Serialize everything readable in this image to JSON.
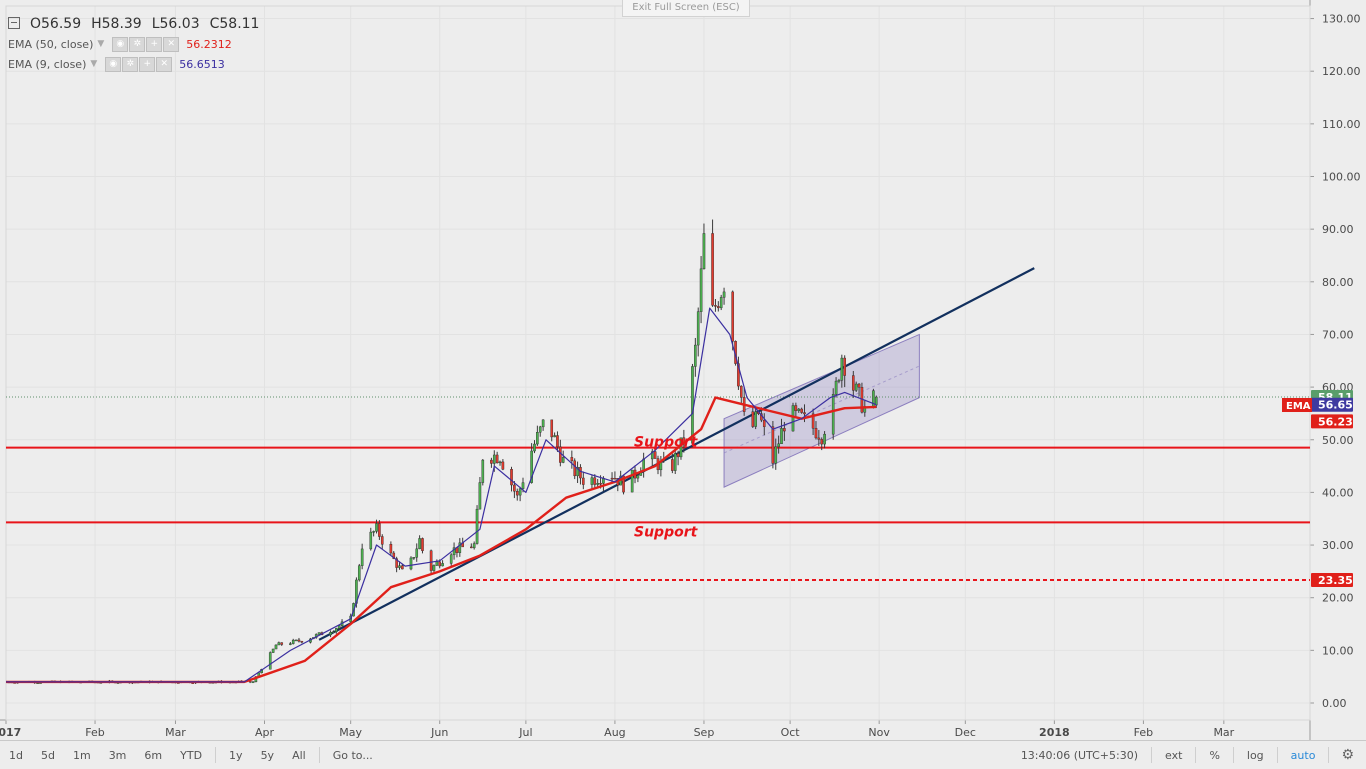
{
  "toolbar": {
    "exit_fullscreen": "Exit Full Screen (ESC)"
  },
  "legend": {
    "open": "O56.59",
    "high": "H58.39",
    "low": "L56.03",
    "close": "C58.11",
    "ema50": {
      "name": "EMA (50, close)",
      "value": "56.2312",
      "color": "#e0201a"
    },
    "ema9": {
      "name": "EMA (9, close)",
      "value": "56.6513",
      "color": "#3b2fa0"
    }
  },
  "price_axis": {
    "ticks": [
      "130.00",
      "120.00",
      "110.00",
      "100.00",
      "90.00",
      "80.00",
      "70.00",
      "60.00",
      "50.00",
      "40.00",
      "30.00",
      "20.00",
      "10.00",
      "0.00"
    ],
    "last_price": "58.11",
    "ema_label": "EMA",
    "ema9_value": "56.65",
    "ema50_value": "56.23",
    "level_label": "23.35"
  },
  "time_axis": {
    "labels": [
      {
        "t": "2017",
        "bold": true
      },
      {
        "t": "Feb"
      },
      {
        "t": "Mar"
      },
      {
        "t": "Apr"
      },
      {
        "t": "May"
      },
      {
        "t": "Jun"
      },
      {
        "t": "Jul"
      },
      {
        "t": "Aug"
      },
      {
        "t": "Sep"
      },
      {
        "t": "Oct"
      },
      {
        "t": "Nov"
      },
      {
        "t": "Dec"
      },
      {
        "t": "2018",
        "bold": true
      },
      {
        "t": "Feb"
      },
      {
        "t": "Mar"
      }
    ]
  },
  "annotations": {
    "support_upper": "Support",
    "support_lower": "Support"
  },
  "bottom_bar": {
    "timeframes": [
      "1d",
      "5d",
      "1m",
      "3m",
      "6m",
      "YTD",
      "1y",
      "5y",
      "All"
    ],
    "goto": "Go to...",
    "clock": "13:40:06 (UTC+5:30)",
    "ext": "ext",
    "percent": "%",
    "log": "log",
    "auto": "auto"
  },
  "chart_data": {
    "type": "line",
    "y_range": [
      0,
      130
    ],
    "x_range": [
      "2017-01-01",
      "2018-03-31"
    ],
    "grid": true,
    "last_candle": {
      "open": 56.59,
      "high": 58.39,
      "low": 56.03,
      "close": 58.11
    },
    "series": [
      {
        "name": "EMA (50, close)",
        "color": "#e0201a",
        "points": [
          [
            "2017-01-01",
            4
          ],
          [
            "2017-03-25",
            4
          ],
          [
            "2017-04-15",
            8
          ],
          [
            "2017-05-01",
            15
          ],
          [
            "2017-05-15",
            22
          ],
          [
            "2017-06-01",
            25
          ],
          [
            "2017-06-15",
            28
          ],
          [
            "2017-07-01",
            33
          ],
          [
            "2017-07-15",
            39
          ],
          [
            "2017-08-01",
            42
          ],
          [
            "2017-08-15",
            45
          ],
          [
            "2017-08-31",
            52
          ],
          [
            "2017-09-05",
            58
          ],
          [
            "2017-09-20",
            56
          ],
          [
            "2017-10-05",
            54
          ],
          [
            "2017-10-20",
            56
          ],
          [
            "2017-10-31",
            56.23
          ]
        ]
      },
      {
        "name": "EMA (9, close)",
        "color": "#3b2fa0",
        "points": [
          [
            "2017-01-01",
            4
          ],
          [
            "2017-03-25",
            4
          ],
          [
            "2017-04-10",
            10
          ],
          [
            "2017-05-01",
            16
          ],
          [
            "2017-05-10",
            30
          ],
          [
            "2017-05-20",
            26
          ],
          [
            "2017-06-01",
            27
          ],
          [
            "2017-06-15",
            33
          ],
          [
            "2017-06-20",
            45
          ],
          [
            "2017-07-01",
            40
          ],
          [
            "2017-07-08",
            50
          ],
          [
            "2017-07-20",
            44
          ],
          [
            "2017-08-01",
            42
          ],
          [
            "2017-08-15",
            48
          ],
          [
            "2017-08-28",
            55
          ],
          [
            "2017-09-03",
            75
          ],
          [
            "2017-09-10",
            70
          ],
          [
            "2017-09-16",
            58
          ],
          [
            "2017-09-25",
            52
          ],
          [
            "2017-10-05",
            54
          ],
          [
            "2017-10-15",
            58
          ],
          [
            "2017-10-20",
            59
          ],
          [
            "2017-10-31",
            56.65
          ]
        ]
      }
    ],
    "price_path": [
      [
        "2017-01-01",
        4
      ],
      [
        "2017-03-28",
        4
      ],
      [
        "2017-04-05",
        11
      ],
      [
        "2017-04-15",
        12
      ],
      [
        "2017-04-25",
        14
      ],
      [
        "2017-05-01",
        16
      ],
      [
        "2017-05-05",
        30
      ],
      [
        "2017-05-10",
        33
      ],
      [
        "2017-05-15",
        28
      ],
      [
        "2017-05-20",
        24
      ],
      [
        "2017-05-25",
        31
      ],
      [
        "2017-05-28",
        25
      ],
      [
        "2017-06-05",
        29
      ],
      [
        "2017-06-13",
        30
      ],
      [
        "2017-06-16",
        47
      ],
      [
        "2017-06-22",
        47
      ],
      [
        "2017-06-28",
        39
      ],
      [
        "2017-07-03",
        48
      ],
      [
        "2017-07-08",
        54
      ],
      [
        "2017-07-14",
        46
      ],
      [
        "2017-07-22",
        42
      ],
      [
        "2017-07-30",
        44
      ],
      [
        "2017-08-05",
        41
      ],
      [
        "2017-08-12",
        47
      ],
      [
        "2017-08-20",
        44
      ],
      [
        "2017-08-25",
        50
      ],
      [
        "2017-08-29",
        67
      ],
      [
        "2017-09-01",
        88
      ],
      [
        "2017-09-04",
        74
      ],
      [
        "2017-09-08",
        80
      ],
      [
        "2017-09-12",
        66
      ],
      [
        "2017-09-16",
        50
      ],
      [
        "2017-09-20",
        55
      ],
      [
        "2017-09-25",
        46
      ],
      [
        "2017-09-30",
        55
      ],
      [
        "2017-10-05",
        54
      ],
      [
        "2017-10-12",
        51
      ],
      [
        "2017-10-16",
        57
      ],
      [
        "2017-10-19",
        66
      ],
      [
        "2017-10-23",
        60
      ],
      [
        "2017-10-27",
        56
      ],
      [
        "2017-10-31",
        58.11
      ]
    ],
    "horizontal_levels": [
      48.5,
      34.3,
      23.35
    ],
    "trendline": [
      [
        "2017-04-20",
        12
      ],
      [
        "2017-12-25",
        82.6
      ]
    ],
    "channel": {
      "from": "2017-09-08",
      "to": "2017-11-15",
      "lower": [
        41,
        58
      ],
      "upper": [
        54,
        70
      ]
    }
  }
}
